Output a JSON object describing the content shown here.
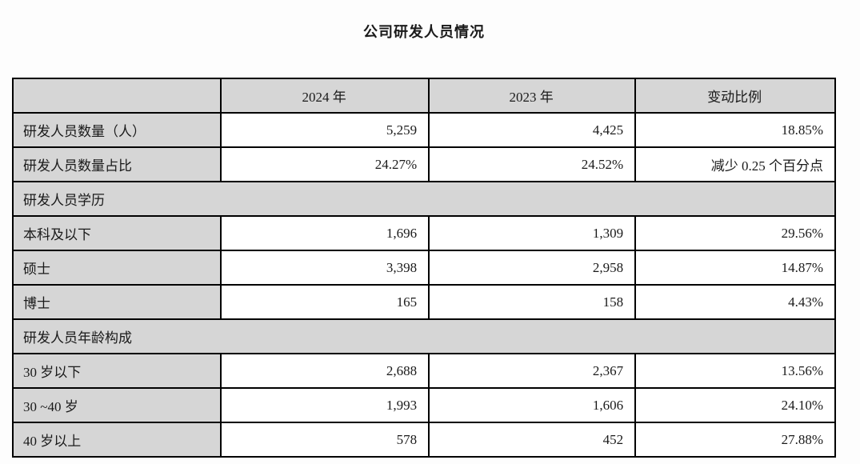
{
  "page_title": "公司研发人员情况",
  "table": {
    "columns": [
      "",
      "2024 年",
      "2023 年",
      "变动比例"
    ],
    "rows": [
      {
        "type": "data",
        "label": "研发人员数量（人）",
        "v2024": "5,259",
        "v2023": "4,425",
        "change": "18.85%"
      },
      {
        "type": "data",
        "label": "研发人员数量占比",
        "v2024": "24.27%",
        "v2023": "24.52%",
        "change": "减少 0.25 个百分点"
      },
      {
        "type": "section",
        "label": "研发人员学历"
      },
      {
        "type": "data",
        "label": "本科及以下",
        "v2024": "1,696",
        "v2023": "1,309",
        "change": "29.56%"
      },
      {
        "type": "data",
        "label": "硕士",
        "v2024": "3,398",
        "v2023": "2,958",
        "change": "14.87%"
      },
      {
        "type": "data",
        "label": "博士",
        "v2024": "165",
        "v2023": "158",
        "change": "4.43%"
      },
      {
        "type": "section",
        "label": "研发人员年龄构成"
      },
      {
        "type": "data",
        "label": "30 岁以下",
        "v2024": "2,688",
        "v2023": "2,367",
        "change": "13.56%"
      },
      {
        "type": "data",
        "label": "30 ~40 岁",
        "v2024": "1,993",
        "v2023": "1,606",
        "change": "24.10%"
      },
      {
        "type": "data",
        "label": "40 岁以上",
        "v2024": "578",
        "v2023": "452",
        "change": "27.88%"
      }
    ]
  },
  "colors": {
    "header_bg": "#d6d6d6",
    "border": "#000000",
    "page_bg": "#fdfdfd"
  }
}
